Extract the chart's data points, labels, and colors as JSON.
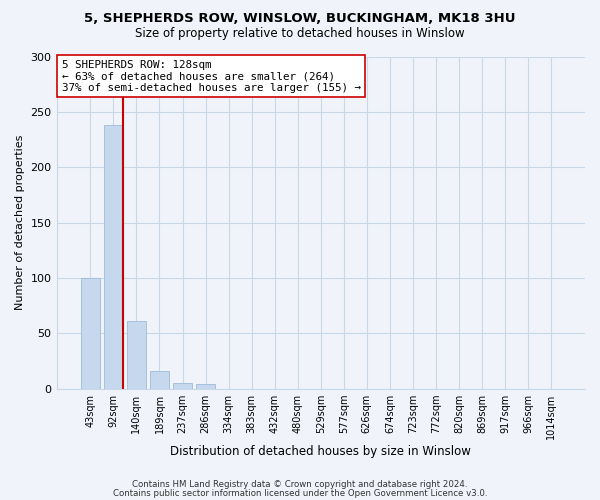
{
  "title": "5, SHEPHERDS ROW, WINSLOW, BUCKINGHAM, MK18 3HU",
  "subtitle": "Size of property relative to detached houses in Winslow",
  "xlabel": "Distribution of detached houses by size in Winslow",
  "ylabel": "Number of detached properties",
  "bar_labels": [
    "43sqm",
    "92sqm",
    "140sqm",
    "189sqm",
    "237sqm",
    "286sqm",
    "334sqm",
    "383sqm",
    "432sqm",
    "480sqm",
    "529sqm",
    "577sqm",
    "626sqm",
    "674sqm",
    "723sqm",
    "772sqm",
    "820sqm",
    "869sqm",
    "917sqm",
    "966sqm",
    "1014sqm"
  ],
  "bar_heights": [
    100,
    238,
    61,
    16,
    5,
    4,
    0,
    0,
    0,
    0,
    0,
    0,
    0,
    0,
    0,
    0,
    0,
    0,
    0,
    0,
    0
  ],
  "bar_color": "#c5d8ed",
  "bar_edge_color": "#a0bcd8",
  "ylim": [
    0,
    300
  ],
  "yticks": [
    0,
    50,
    100,
    150,
    200,
    250,
    300
  ],
  "vline_color": "#cc0000",
  "annotation_line1": "5 SHEPHERDS ROW: 128sqm",
  "annotation_line2": "← 63% of detached houses are smaller (264)",
  "annotation_line3": "37% of semi-detached houses are larger (155) →",
  "annotation_box_color": "#ffffff",
  "annotation_box_edge": "#cc0000",
  "footer1": "Contains HM Land Registry data © Crown copyright and database right 2024.",
  "footer2": "Contains public sector information licensed under the Open Government Licence v3.0.",
  "background_color": "#f0f4fa",
  "grid_color": "#c8d8e8",
  "title_fontsize": 9.5,
  "subtitle_fontsize": 8.5
}
